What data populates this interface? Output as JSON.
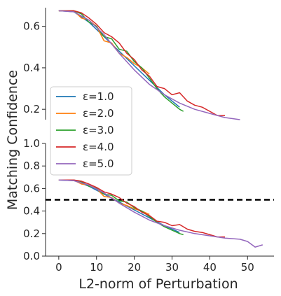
{
  "chart_data": {
    "type": "line",
    "ylabel": "Matching Confidence",
    "xlabel": "L2-norm of Perturbation",
    "legend": {
      "placement": "left"
    },
    "series_names": [
      "ε=1.0",
      "ε=2.0",
      "ε=3.0",
      "ε=4.0",
      "ε=5.0"
    ],
    "colors": [
      "#1f77b4",
      "#ff7f0e",
      "#2ca02c",
      "#d62728",
      "#9467bd"
    ],
    "panels": [
      {
        "name": "top",
        "xlim": [
          -3.5,
          57
        ],
        "ylim": [
          0.15,
          0.69
        ],
        "yticks": [
          0.2,
          0.4,
          0.6
        ],
        "series": [
          {
            "name": "ε=1.0",
            "x": [
              0,
              4,
              8,
              12,
              16,
              20,
              24,
              28,
              32
            ],
            "y": [
              0.675,
              0.67,
              0.62,
              0.55,
              0.48,
              0.41,
              0.34,
              0.27,
              0.21
            ]
          },
          {
            "name": "ε=2.0",
            "x": [
              0,
              4,
              6,
              8,
              10,
              12,
              14,
              16,
              18,
              20,
              22,
              24
            ],
            "y": [
              0.675,
              0.675,
              0.64,
              0.63,
              0.6,
              0.53,
              0.52,
              0.47,
              0.45,
              0.42,
              0.4,
              0.37
            ]
          },
          {
            "name": "ε=3.0",
            "x": [
              0,
              4,
              6,
              8,
              10,
              12,
              14,
              16,
              18,
              20,
              22,
              24,
              26,
              28,
              30,
              32,
              33
            ],
            "y": [
              0.675,
              0.675,
              0.66,
              0.62,
              0.6,
              0.55,
              0.54,
              0.49,
              0.48,
              0.43,
              0.4,
              0.35,
              0.3,
              0.26,
              0.23,
              0.2,
              0.19
            ]
          },
          {
            "name": "ε=4.0",
            "x": [
              0,
              4,
              6,
              8,
              10,
              12,
              14,
              16,
              18,
              20,
              22,
              24,
              26,
              28,
              30,
              32,
              34,
              36,
              38,
              40,
              42,
              44
            ],
            "y": [
              0.675,
              0.675,
              0.665,
              0.64,
              0.61,
              0.57,
              0.55,
              0.52,
              0.47,
              0.44,
              0.39,
              0.36,
              0.31,
              0.3,
              0.27,
              0.28,
              0.24,
              0.22,
              0.21,
              0.19,
              0.17,
              0.17
            ]
          },
          {
            "name": "ε=5.0",
            "x": [
              0,
              4,
              8,
              12,
              16,
              20,
              24,
              28,
              32,
              36,
              40,
              44,
              48
            ],
            "y": [
              0.675,
              0.67,
              0.63,
              0.56,
              0.47,
              0.39,
              0.32,
              0.27,
              0.23,
              0.2,
              0.18,
              0.16,
              0.15
            ]
          }
        ]
      },
      {
        "name": "bottom",
        "xlim": [
          -3.5,
          57
        ],
        "ylim": [
          0.0,
          1.0
        ],
        "yticks": [
          0.0,
          0.2,
          0.4,
          0.6,
          0.8,
          1.0
        ],
        "xticks": [
          0,
          10,
          20,
          30,
          40,
          50
        ],
        "threshold": 0.5,
        "series": [
          {
            "name": "ε=1.0",
            "x": [
              0,
              4,
              8,
              12,
              16,
              20,
              24,
              28,
              32
            ],
            "y": [
              0.675,
              0.67,
              0.62,
              0.55,
              0.48,
              0.41,
              0.34,
              0.27,
              0.21
            ]
          },
          {
            "name": "ε=2.0",
            "x": [
              0,
              4,
              6,
              8,
              10,
              12,
              14,
              16,
              18,
              20,
              22,
              24
            ],
            "y": [
              0.675,
              0.675,
              0.64,
              0.63,
              0.6,
              0.53,
              0.52,
              0.47,
              0.45,
              0.42,
              0.4,
              0.37
            ]
          },
          {
            "name": "ε=3.0",
            "x": [
              0,
              4,
              6,
              8,
              10,
              12,
              14,
              16,
              18,
              20,
              22,
              24,
              26,
              28,
              30,
              32,
              33
            ],
            "y": [
              0.675,
              0.675,
              0.66,
              0.62,
              0.6,
              0.55,
              0.54,
              0.49,
              0.48,
              0.43,
              0.4,
              0.35,
              0.3,
              0.26,
              0.23,
              0.2,
              0.19
            ]
          },
          {
            "name": "ε=4.0",
            "x": [
              0,
              4,
              6,
              8,
              10,
              12,
              14,
              16,
              18,
              20,
              22,
              24,
              26,
              28,
              30,
              32,
              34,
              36,
              38,
              40,
              42,
              44
            ],
            "y": [
              0.675,
              0.675,
              0.665,
              0.64,
              0.61,
              0.57,
              0.55,
              0.52,
              0.47,
              0.44,
              0.39,
              0.36,
              0.31,
              0.3,
              0.27,
              0.28,
              0.24,
              0.22,
              0.21,
              0.19,
              0.17,
              0.17
            ]
          },
          {
            "name": "ε=5.0",
            "x": [
              0,
              4,
              8,
              12,
              16,
              20,
              24,
              28,
              32,
              36,
              40,
              44,
              48,
              50,
              52,
              54
            ],
            "y": [
              0.675,
              0.67,
              0.63,
              0.56,
              0.47,
              0.39,
              0.32,
              0.27,
              0.23,
              0.2,
              0.18,
              0.16,
              0.15,
              0.13,
              0.08,
              0.1
            ]
          }
        ]
      }
    ]
  }
}
